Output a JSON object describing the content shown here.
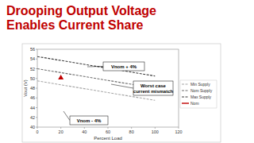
{
  "chart_data": {
    "type": "line",
    "title": "Drooping Output Voltage Enables Current Share",
    "x_label": "Percent Load",
    "y_label": "Vout (V)",
    "x": [
      0,
      20,
      40,
      60,
      80,
      100
    ],
    "series": [
      {
        "name": "Min Supply",
        "color": "#a6a6a6",
        "line_style": "dashed",
        "values": [
          49.5,
          48.7,
          47.9,
          47.1,
          46.3,
          45.5
        ]
      },
      {
        "name": "Nom Supply",
        "color": "#6e6e6e",
        "line_style": "dashed",
        "values": [
          52,
          51.2,
          50.4,
          49.6,
          48.8,
          48
        ]
      },
      {
        "name": "Max Supply",
        "color": "#3a3a3a",
        "line_style": "dashed",
        "values": [
          54.5,
          53.7,
          52.9,
          52.1,
          51.3,
          50.5
        ]
      },
      {
        "name": "Nom",
        "color": "#c00000",
        "type": "scatter",
        "marker": "triangle",
        "values": [
          null,
          50.2,
          null,
          null,
          null,
          null
        ]
      }
    ],
    "xlim": [
      0,
      120
    ],
    "xticks": [
      0,
      20,
      40,
      60,
      80,
      100,
      120
    ],
    "ylim": [
      40,
      56
    ],
    "yticks": [
      40,
      42,
      44,
      46,
      48,
      50,
      52,
      54,
      56
    ],
    "grid": false,
    "legend": "right",
    "annotations": [
      {
        "text": "Vnom + 4%"
      },
      {
        "text": "Worst case current mismatch"
      },
      {
        "text": "Vnom - 4%"
      }
    ]
  }
}
